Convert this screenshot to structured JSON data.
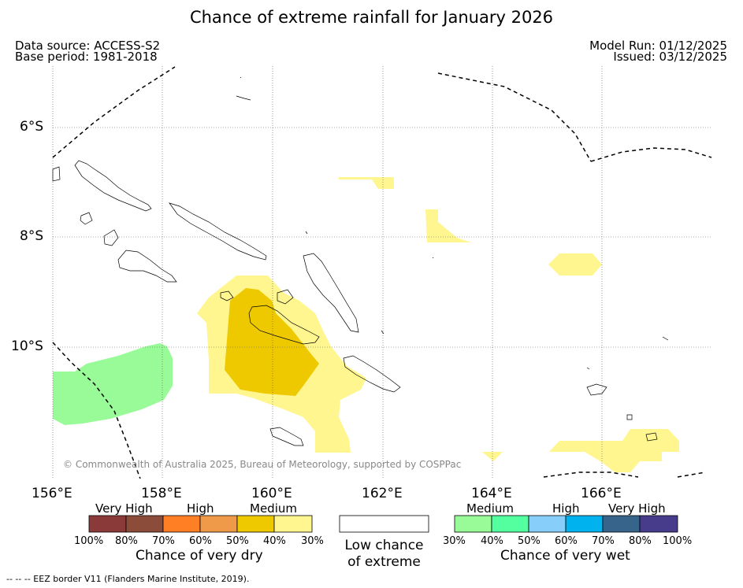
{
  "title": "Chance of extreme rainfall for January 2026",
  "header": {
    "data_source": "Data source: ACCESS-S2",
    "base_period": "Base period: 1981-2018",
    "model_run": "Model Run: 01/12/2025",
    "issued": "Issued: 03/12/2025"
  },
  "map": {
    "lon_labels": [
      "156°E",
      "158°E",
      "160°E",
      "162°E",
      "164°E",
      "166°E"
    ],
    "lat_labels": [
      "6°S",
      "8°S",
      "10°S"
    ],
    "copyright": "© Commonwealth of Australia 2025, Bureau of Meteorology, supported by COSPPac",
    "colors": {
      "dry_medium_light": "#fff68f",
      "dry_medium_dark": "#eec900",
      "wet_medium": "#98fb98",
      "coast": "#000000",
      "grid": "#555555"
    }
  },
  "legend": {
    "dry": {
      "categories": [
        "Very High",
        "High",
        "Medium"
      ],
      "percents": [
        "100%",
        "80%",
        "70%",
        "60%",
        "50%",
        "40%",
        "30%"
      ],
      "colors": [
        "#8b3a3a",
        "#8b4c39",
        "#ff7f24",
        "#ee9a49",
        "#eec900",
        "#fff68f"
      ],
      "caption": "Chance of very dry"
    },
    "low": {
      "caption_line1": "Low chance",
      "caption_line2": "of extreme",
      "color": "#ffffff"
    },
    "wet": {
      "categories": [
        "Medium",
        "High",
        "Very High"
      ],
      "percents": [
        "30%",
        "40%",
        "50%",
        "60%",
        "70%",
        "80%",
        "100%"
      ],
      "colors": [
        "#98fb98",
        "#54ff9f",
        "#87cefa",
        "#00b2ee",
        "#36648b",
        "#473c8b"
      ],
      "caption": "Chance of very wet"
    }
  },
  "footnote": "-- -- -- EEZ border V11 (Flanders Marine Institute, 2019)."
}
